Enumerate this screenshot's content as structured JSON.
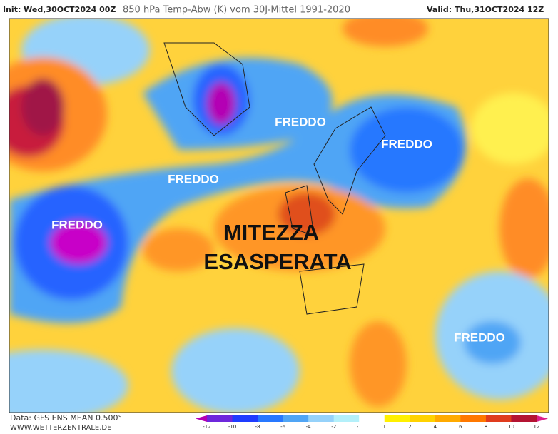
{
  "header": {
    "init": "Init: Wed,30OCT2024 00Z",
    "title": "850 hPa Temp-Abw (K) vom 30J-Mittel 1991-2020",
    "valid": "Valid: Thu,31OCT2024 12Z"
  },
  "labels": [
    {
      "text": "FREDDO"
    },
    {
      "text": "FREDDO"
    },
    {
      "text": "FREDDO"
    },
    {
      "text": "FREDDO"
    },
    {
      "text": "FREDDO"
    },
    {
      "text": "MITEZZA"
    },
    {
      "text": "ESASPERATA"
    }
  ],
  "footer": {
    "data": "Data: GFS ENS MEAN 0.500°",
    "site": "WWW.WETTERZENTRALE.DE"
  },
  "colorbar": {
    "ticks": [
      -12,
      -10,
      -8,
      -6,
      -4,
      -2,
      -1,
      1,
      2,
      4,
      6,
      8,
      10,
      12
    ]
  }
}
